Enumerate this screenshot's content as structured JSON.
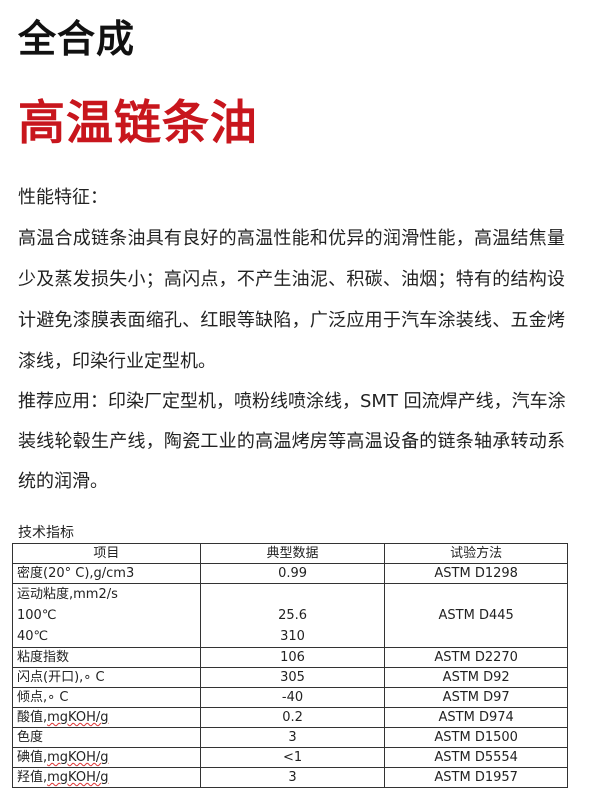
{
  "title": "全合成",
  "subtitle": "高温链条油",
  "features_heading": "性能特征：",
  "features_lines": [
    "高温合成链条油具有良好的高温性能和优异的润滑性能，高温结焦量",
    "少及蒸发损失小；高闪点，不产生油泥、积碳、油烟；特有的结构设",
    "计避免漆膜表面缩孔、红眼等缺陷，广泛应用于汽车涂装线、五金烤",
    "漆线，印染行业定型机。"
  ],
  "application_lines": [
    "推荐应用：印染厂定型机，喷粉线喷涂线，SMT 回流焊产线，汽车涂",
    "装线轮毂生产线，陶瓷工业的高温烤房等高温设备的链条轴承转动系",
    "统的润滑。"
  ],
  "table_caption": "技术指标",
  "table": {
    "headers": [
      "项目",
      "典型数据",
      "试验方法"
    ],
    "rows": [
      {
        "item": "密度(20° C),g/cm3",
        "value": "0.99",
        "method": "ASTM D1298"
      },
      {
        "item": "运动粘度,mm2/s",
        "sub": [
          {
            "item": "100℃",
            "value": "25.6"
          },
          {
            "item": "40℃",
            "value": "310"
          }
        ],
        "method": "ASTM D445"
      },
      {
        "item": "粘度指数",
        "value": "106",
        "method": "ASTM D2270"
      },
      {
        "item": "闪点(开口),∘ C",
        "value": "305",
        "method": "ASTM D92"
      },
      {
        "item": "倾点,∘ C",
        "value": "-40",
        "method": "ASTM D97"
      },
      {
        "item_cn": "酸值,",
        "item_unit": "mgKOH/g",
        "value": "0.2",
        "method": "ASTM D974"
      },
      {
        "item": "色度",
        "value": "3",
        "method": "ASTM D1500"
      },
      {
        "item_cn": "碘值,",
        "item_unit": "mgKOH/g",
        "value": "<1",
        "method": "ASTM D5554"
      },
      {
        "item_cn": "羟值,",
        "item_unit": "mgKOH/g",
        "value": "3",
        "method": "ASTM D1957"
      }
    ]
  },
  "colors": {
    "subtitle": "#c8161d",
    "text": "#222222"
  }
}
